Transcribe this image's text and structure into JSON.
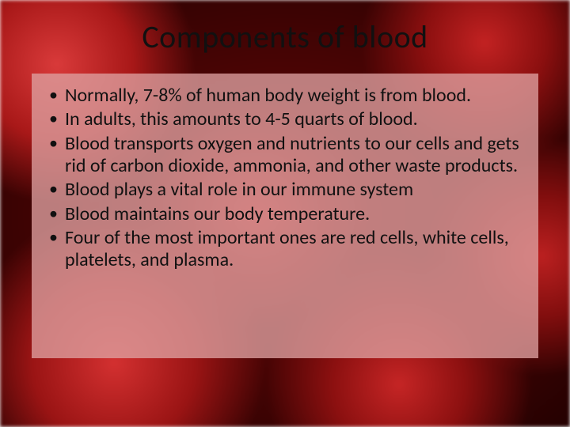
{
  "slide": {
    "title": "Components of blood",
    "title_color": "#111111",
    "title_fontsize": 40,
    "background": {
      "theme": "red-blood-cells",
      "base_colors": [
        "#6a0808",
        "#3a0303",
        "#240101"
      ],
      "cell_highlight": "#d93a3a",
      "cell_shadow": "#7a0c0c"
    },
    "content_box": {
      "background_color": "rgba(222,160,160,0.78)",
      "text_color": "#111111",
      "bullet_fontsize": 24
    },
    "bullets": [
      "Normally, 7-8% of human body weight is from blood.",
      "In adults, this amounts to 4-5 quarts of blood.",
      "Blood transports oxygen and nutrients to our cells and gets rid of carbon dioxide, ammonia, and other waste products.",
      "Blood plays a vital role in our immune system",
      "Blood maintains our body temperature.",
      "Four of the most important ones are red cells, white cells, platelets, and plasma."
    ]
  }
}
